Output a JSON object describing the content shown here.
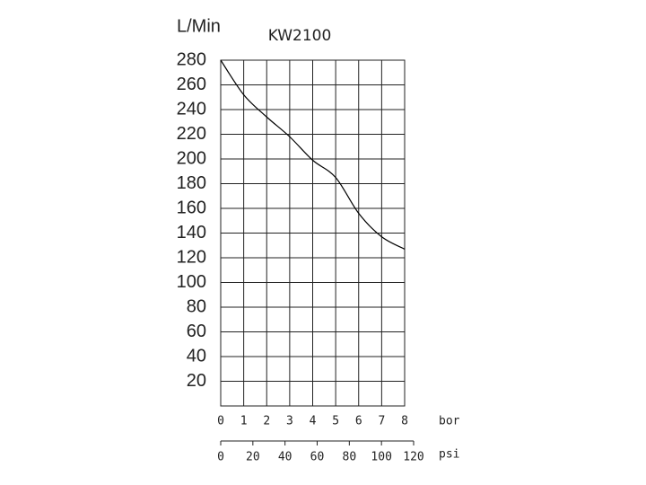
{
  "chart_data": {
    "type": "line",
    "title": "KW2100",
    "y_label": "L/Min",
    "x_label": "bor",
    "x2_label": "psi",
    "x": [
      0,
      1,
      2,
      3,
      4,
      5,
      6,
      7,
      8
    ],
    "series": [
      {
        "name": "KW2100",
        "color": "#000000",
        "values": [
          280,
          252,
          234,
          218,
          199,
          185,
          156,
          137,
          127
        ]
      }
    ],
    "xlim": [
      0,
      8
    ],
    "xticks": [
      0,
      1,
      2,
      3,
      4,
      5,
      6,
      7,
      8
    ],
    "x2lim": [
      0,
      120
    ],
    "x2ticks": [
      0,
      20,
      40,
      60,
      80,
      100,
      120
    ],
    "ylim": [
      0,
      280
    ],
    "yticks": [
      20,
      40,
      60,
      80,
      100,
      120,
      140,
      160,
      180,
      200,
      220,
      240,
      260,
      280
    ],
    "grid": true
  }
}
